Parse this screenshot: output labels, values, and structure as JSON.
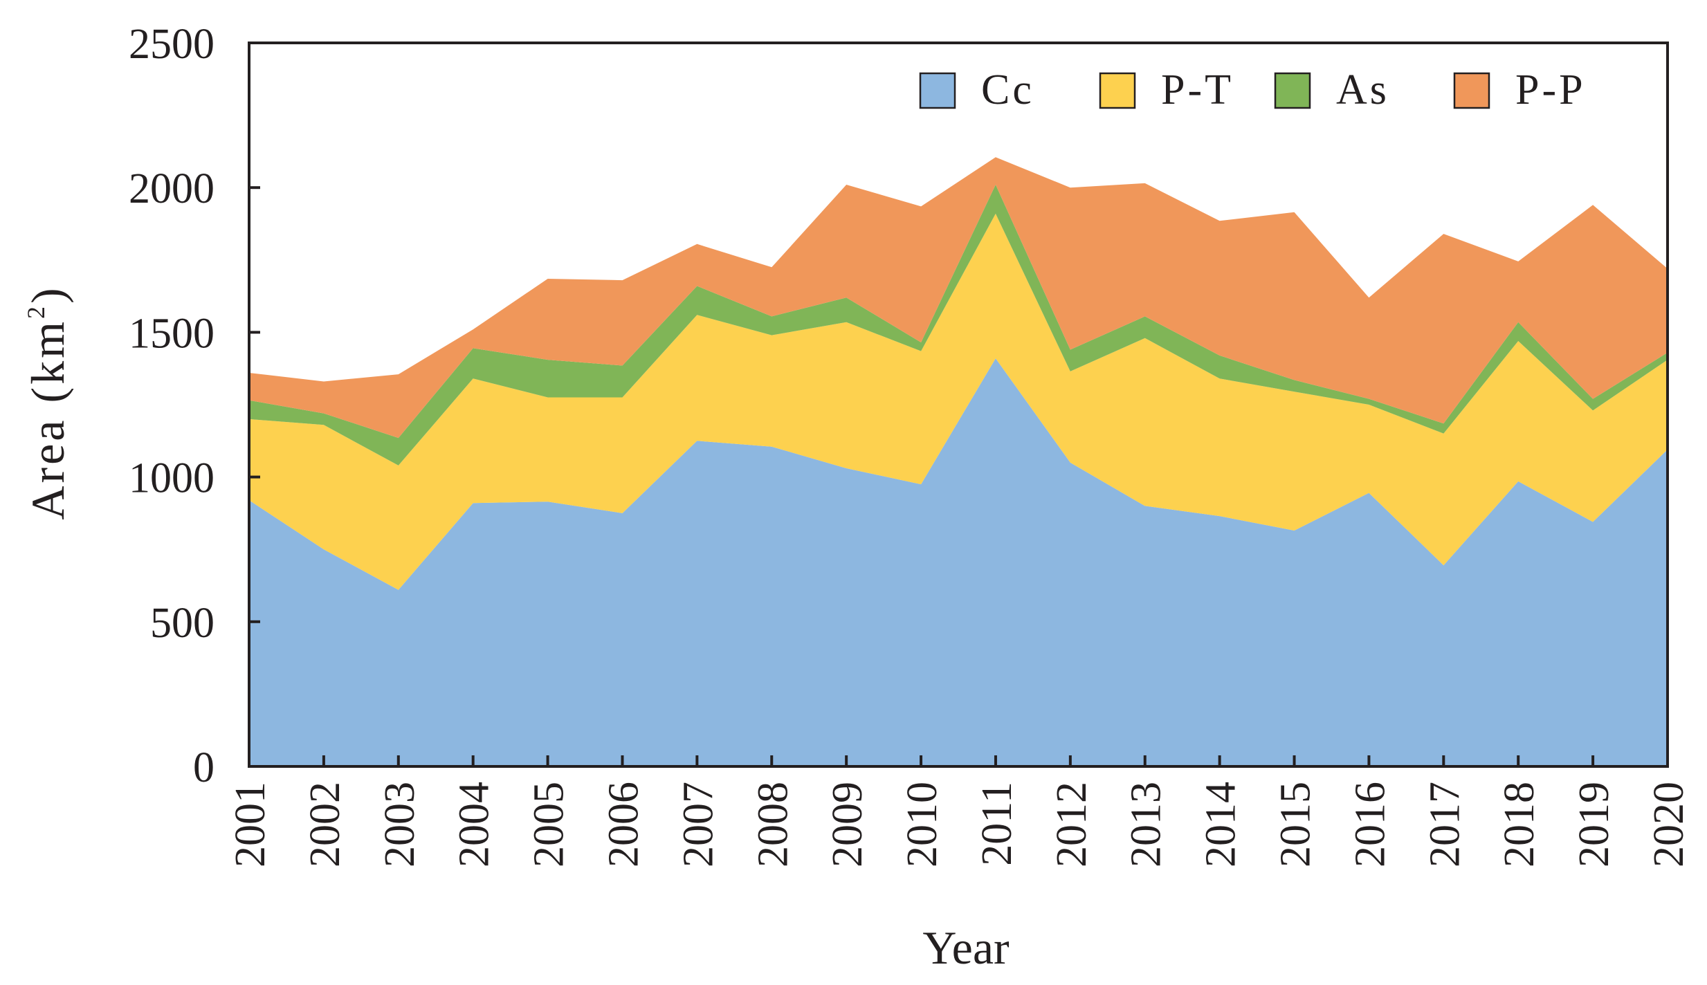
{
  "chart_data": {
    "type": "area",
    "stacked": true,
    "title": "",
    "xlabel": "Year",
    "ylabel": "Area (km",
    "ylabel_sup": "2",
    "ylabel_close": ")",
    "ylim": [
      0,
      2500
    ],
    "yticks": [
      0,
      500,
      1000,
      1500,
      2000,
      2500
    ],
    "ytick_labels": [
      "0",
      "500",
      "1000",
      "1500",
      "2000",
      "2500"
    ],
    "x": [
      "2001",
      "2002",
      "2003",
      "2004",
      "2005",
      "2006",
      "2007",
      "2008",
      "2009",
      "2010",
      "2011",
      "2012",
      "2013",
      "2014",
      "2015",
      "2016",
      "2017",
      "2018",
      "2019",
      "2020"
    ],
    "legend_position": "top-right",
    "grid": false,
    "series": [
      {
        "name": "Cc",
        "color": "#8db7e0",
        "values": [
          920,
          750,
          610,
          910,
          915,
          875,
          1125,
          1105,
          1030,
          975,
          1410,
          1050,
          900,
          865,
          815,
          945,
          695,
          985,
          845,
          1095
        ]
      },
      {
        "name": "P-T",
        "color": "#fdd14f",
        "values": [
          280,
          430,
          430,
          430,
          360,
          400,
          435,
          385,
          505,
          460,
          500,
          315,
          580,
          475,
          480,
          305,
          455,
          485,
          385,
          310
        ]
      },
      {
        "name": "As",
        "color": "#80b557",
        "values": [
          65,
          40,
          95,
          105,
          130,
          110,
          100,
          65,
          85,
          30,
          100,
          75,
          75,
          80,
          40,
          20,
          35,
          65,
          40,
          25
        ]
      },
      {
        "name": "P-P",
        "color": "#f0975a",
        "values": [
          95,
          110,
          220,
          65,
          280,
          295,
          145,
          170,
          390,
          470,
          95,
          560,
          460,
          465,
          580,
          350,
          655,
          210,
          670,
          290
        ]
      }
    ]
  }
}
